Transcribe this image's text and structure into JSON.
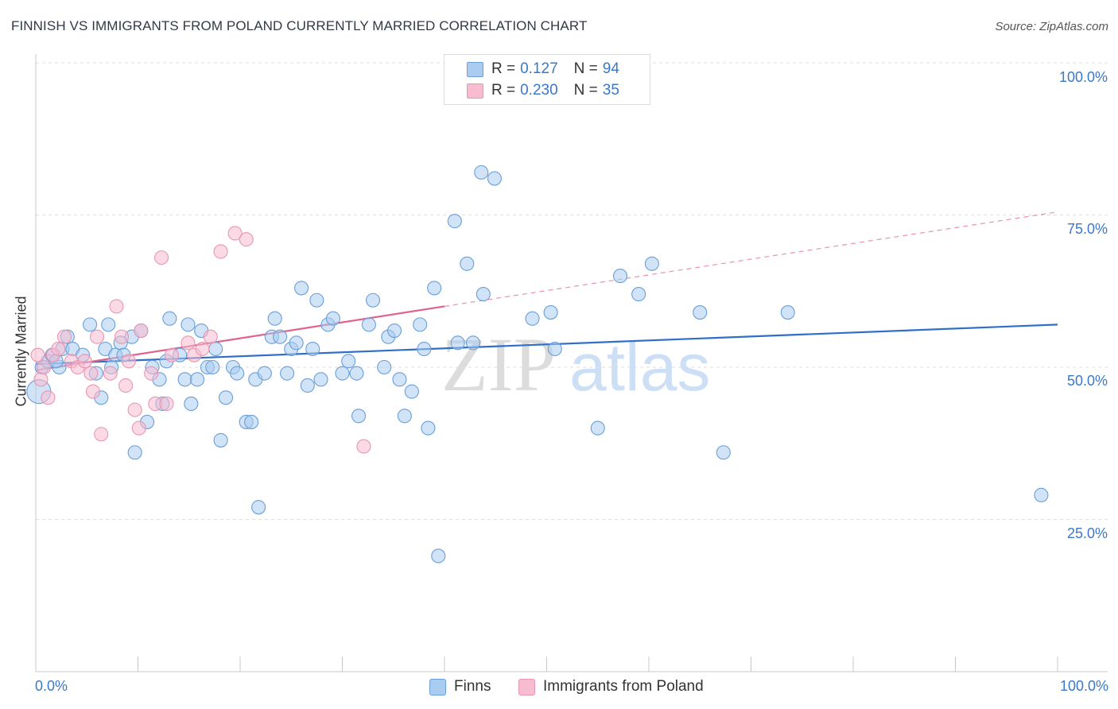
{
  "title": "FINNISH VS IMMIGRANTS FROM POLAND CURRENTLY MARRIED CORRELATION CHART",
  "source": "Source: ZipAtlas.com",
  "watermark": {
    "zip": "ZIP",
    "atlas": "atlas"
  },
  "legend": {
    "finns": {
      "r_label": "R =",
      "r_value": "0.127",
      "n_label": "N =",
      "n_value": "94"
    },
    "poland": {
      "r_label": "R =",
      "r_value": "0.230",
      "n_label": "N =",
      "n_value": "35"
    }
  },
  "bottom_legend": {
    "finns": "Finns",
    "poland": "Immigrants from Poland"
  },
  "x_ticks": {
    "left": "0.0%",
    "right": "100.0%"
  },
  "y_ticks": [
    "100.0%",
    "75.0%",
    "50.0%",
    "25.0%"
  ],
  "ylabel": "Currently Married",
  "colors": {
    "finns_fill": "#aaccf0",
    "finns_stroke": "#6a9fd8",
    "finns_line": "#2f6ec9",
    "poland_fill": "#f8bcd0",
    "poland_stroke": "#e896b2",
    "poland_line": "#e0638e",
    "tick_text": "#3a78c9",
    "grid": "#dddddd"
  },
  "chart_data": {
    "type": "scatter",
    "title": "FINNISH VS IMMIGRANTS FROM POLAND CURRENTLY MARRIED CORRELATION CHART",
    "xlabel": "",
    "ylabel": "Currently Married",
    "xlim": [
      0,
      100
    ],
    "ylim": [
      0,
      103
    ],
    "y_ticks": [
      25,
      50,
      75,
      100
    ],
    "grid": true,
    "series": [
      {
        "name": "Finns",
        "r": 0.127,
        "n": 94,
        "trend": {
          "x0": 0,
          "y0": 50.5,
          "x1": 100,
          "y1": 57.0
        },
        "points": [
          [
            0.3,
            46
          ],
          [
            0.6,
            50
          ],
          [
            1.2,
            51
          ],
          [
            1.6,
            52
          ],
          [
            2.3,
            50
          ],
          [
            2.6,
            53
          ],
          [
            3.1,
            55
          ],
          [
            3.6,
            53
          ],
          [
            4.6,
            52
          ],
          [
            5.3,
            57
          ],
          [
            5.9,
            49
          ],
          [
            6.4,
            45
          ],
          [
            6.8,
            53
          ],
          [
            7.1,
            57
          ],
          [
            7.4,
            50
          ],
          [
            7.8,
            52
          ],
          [
            8.3,
            54
          ],
          [
            8.6,
            52
          ],
          [
            9.4,
            55
          ],
          [
            9.7,
            36
          ],
          [
            10.3,
            56
          ],
          [
            10.9,
            41
          ],
          [
            11.4,
            50
          ],
          [
            12.1,
            48
          ],
          [
            12.4,
            44
          ],
          [
            12.8,
            51
          ],
          [
            13.1,
            58
          ],
          [
            14.1,
            52
          ],
          [
            14.6,
            48
          ],
          [
            14.9,
            57
          ],
          [
            15.2,
            44
          ],
          [
            15.8,
            48
          ],
          [
            16.2,
            56
          ],
          [
            16.8,
            50
          ],
          [
            17.3,
            50
          ],
          [
            17.6,
            53
          ],
          [
            18.1,
            38
          ],
          [
            18.6,
            45
          ],
          [
            19.3,
            50
          ],
          [
            19.7,
            49
          ],
          [
            20.6,
            41
          ],
          [
            21.1,
            41
          ],
          [
            21.5,
            48
          ],
          [
            21.8,
            27
          ],
          [
            22.4,
            49
          ],
          [
            23.1,
            55
          ],
          [
            23.4,
            58
          ],
          [
            23.9,
            55
          ],
          [
            24.6,
            49
          ],
          [
            25.0,
            53
          ],
          [
            25.5,
            54
          ],
          [
            26.0,
            63
          ],
          [
            26.6,
            47
          ],
          [
            27.1,
            53
          ],
          [
            27.5,
            61
          ],
          [
            27.9,
            48
          ],
          [
            28.6,
            57
          ],
          [
            29.1,
            58
          ],
          [
            30.0,
            49
          ],
          [
            30.6,
            51
          ],
          [
            31.4,
            49
          ],
          [
            31.6,
            42
          ],
          [
            32.6,
            57
          ],
          [
            33.0,
            61
          ],
          [
            34.1,
            50
          ],
          [
            34.5,
            55
          ],
          [
            35.1,
            56
          ],
          [
            35.6,
            48
          ],
          [
            36.1,
            42
          ],
          [
            36.8,
            46
          ],
          [
            37.6,
            57
          ],
          [
            38.0,
            53
          ],
          [
            38.4,
            40
          ],
          [
            39.0,
            63
          ],
          [
            39.4,
            19
          ],
          [
            41.0,
            74
          ],
          [
            41.3,
            54
          ],
          [
            42.2,
            67
          ],
          [
            42.8,
            54
          ],
          [
            43.6,
            82
          ],
          [
            43.8,
            62
          ],
          [
            44.9,
            81
          ],
          [
            48.6,
            58
          ],
          [
            50.4,
            59
          ],
          [
            50.8,
            53
          ],
          [
            55.0,
            40
          ],
          [
            57.2,
            65
          ],
          [
            59.0,
            62
          ],
          [
            60.3,
            67
          ],
          [
            65.0,
            59
          ],
          [
            67.3,
            36
          ],
          [
            73.6,
            59
          ],
          [
            98.4,
            29
          ],
          [
            2.0,
            51
          ]
        ]
      },
      {
        "name": "Immigrants from Poland",
        "r": 0.23,
        "n": 35,
        "trend": {
          "x0": 0,
          "y0": 49.5,
          "x1": 40.0,
          "y1": 60.0,
          "dashed_to": {
            "x": 100,
            "y": 75.5
          }
        },
        "points": [
          [
            0.5,
            48
          ],
          [
            0.8,
            50
          ],
          [
            1.2,
            45
          ],
          [
            1.7,
            52
          ],
          [
            2.2,
            53
          ],
          [
            2.8,
            55
          ],
          [
            3.5,
            51
          ],
          [
            4.1,
            50
          ],
          [
            4.8,
            51
          ],
          [
            5.4,
            49
          ],
          [
            5.6,
            46
          ],
          [
            6.0,
            55
          ],
          [
            6.4,
            39
          ],
          [
            7.3,
            49
          ],
          [
            7.9,
            60
          ],
          [
            8.4,
            55
          ],
          [
            8.8,
            47
          ],
          [
            9.1,
            51
          ],
          [
            9.7,
            43
          ],
          [
            10.1,
            40
          ],
          [
            10.3,
            56
          ],
          [
            11.3,
            49
          ],
          [
            11.7,
            44
          ],
          [
            12.3,
            68
          ],
          [
            12.8,
            44
          ],
          [
            13.3,
            52
          ],
          [
            14.9,
            54
          ],
          [
            15.5,
            52
          ],
          [
            16.3,
            53
          ],
          [
            17.1,
            55
          ],
          [
            18.1,
            69
          ],
          [
            19.5,
            72
          ],
          [
            20.6,
            71
          ],
          [
            32.1,
            37
          ],
          [
            0.2,
            52
          ]
        ]
      }
    ]
  }
}
